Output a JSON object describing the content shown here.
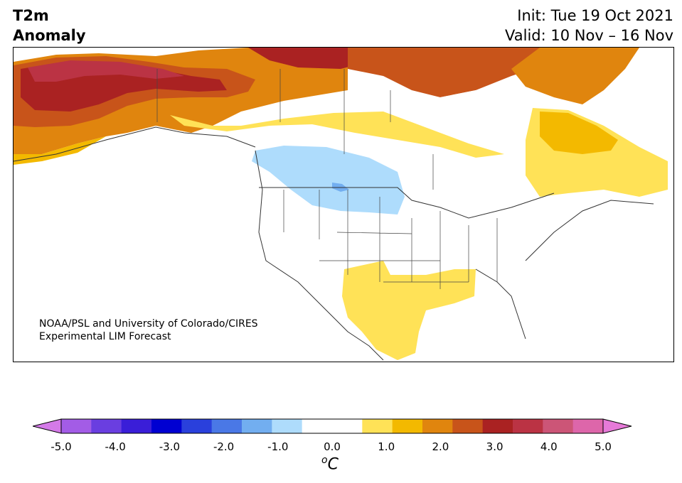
{
  "title": {
    "line1": "T2m",
    "line2": "Anomaly"
  },
  "dates": {
    "init": "Init: Tue 19 Oct 2021",
    "valid": "Valid: 10 Nov – 16 Nov"
  },
  "credit": {
    "line1": "NOAA/PSL and University of Colorado/CIRES",
    "line2": "Experimental LIM Forecast"
  },
  "colorbar": {
    "unit_base": "C",
    "unit_sup": "o",
    "ticks": [
      "-5.0",
      "-4.0",
      "-3.0",
      "-2.0",
      "-1.0",
      "0.0",
      "1.0",
      "2.0",
      "3.0",
      "4.0",
      "5.0"
    ],
    "colors": [
      "#a35ce6",
      "#6a3ee0",
      "#3a1ed8",
      "#0000d2",
      "#2a40dc",
      "#4a78e6",
      "#72aef0",
      "#aedcfc",
      "#ffffff",
      "#ffffff",
      "#ffe257",
      "#f3b900",
      "#e0850e",
      "#c8541a",
      "#aa2222",
      "#bb3344",
      "#cc5577",
      "#dd66aa"
    ],
    "extend_low": "#d47ae8",
    "extend_high": "#e67ad8"
  },
  "map": {
    "variable": "2-m temperature anomaly",
    "regions": [
      {
        "name": "alaska-warm-core",
        "anomaly": 3.5
      },
      {
        "name": "northern-canada-warm",
        "anomaly": 2.5
      },
      {
        "name": "eastern-canada-warm",
        "anomaly": 1.5
      },
      {
        "name": "prairies-cool",
        "anomaly": -1.0
      },
      {
        "name": "south-central-us-warm",
        "anomaly": 0.8
      }
    ]
  }
}
